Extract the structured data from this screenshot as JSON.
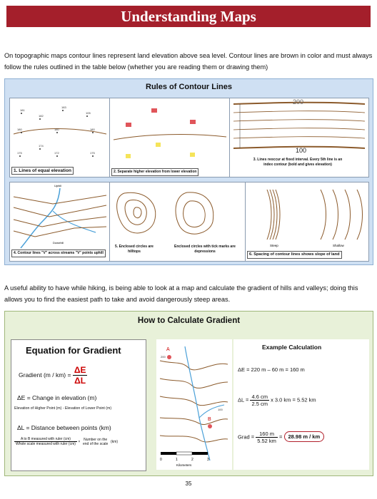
{
  "banner": {
    "title": "Understanding Maps"
  },
  "intro": {
    "text": "On topographic maps contour lines represent land elevation above sea level. Contour lines are brown in color and must always follow the rules outlined in the table below (whether you are reading them or drawing them)"
  },
  "rules": {
    "title": "Rules of Contour Lines",
    "panel1": {
      "caption": "1. Lines of equal elevation",
      "labels": [
        "181",
        "182",
        "183",
        "105",
        "180",
        "180",
        "180",
        "174",
        "175",
        "172",
        "175"
      ]
    },
    "panel2": {
      "caption": "2. Separate higher elevation from lower elevation"
    },
    "panel3": {
      "caption": "3. Lines reoccur at fixed interval. Every 5th line is an index contour (bold and gives elevation)",
      "top_label": "200",
      "bottom_label": "100"
    },
    "panel4": {
      "caption": "4. Contour lines \"V\" across streams \"V\" points uphill",
      "uphill": "Uphill",
      "downhill": "Downhill"
    },
    "panel5": {
      "caption1": "5. Enclosed circles are hilltops",
      "caption2": "Enclosed circles with tick marks are depressions"
    },
    "panel6": {
      "caption": "6. Spacing of contour lines shows slope of land",
      "steep": "Steep",
      "shallow": "Shallow"
    }
  },
  "hiking": {
    "text": "A useful ability to have while hiking, is being able to look at a map and calculate the gradient of hills and valleys; doing this allows you to find the easiest path to take and avoid dangerously steep areas."
  },
  "gradient": {
    "title": "How to Calculate Gradient",
    "equation_title": "Equation for Gradient",
    "gradient_label": "Gradient (m / km) =",
    "delta_e": "ΔE",
    "delta_l": "ΔL",
    "change_label": "ΔE = Change in elevation (m)",
    "change_sub": "Elevation of Higher Point (m) - Elevation of Lower Point (m)",
    "distance_label": "ΔL = Distance between points (km)",
    "a_to_b": "A to B measured with ruler (cm)",
    "whole_scale": "Whole scale measured with ruler (cm)",
    "times": "×",
    "number_on_end": "Number on the end of the scale",
    "km": "(km)",
    "map_labels": {
      "a": "A",
      "b": "B",
      "contour1": "200",
      "contour2": "100"
    },
    "scale": {
      "ticks": [
        "0",
        "1",
        "2",
        "3"
      ],
      "unit": "Kilometers"
    },
    "example": {
      "title": "Example Calculation",
      "de": "ΔE = 220 m – 60 m = 160 m",
      "dl_prefix": "ΔL =",
      "dl_num": "4.6 cm",
      "dl_den": "2.5 cm",
      "dl_rest": "x  3.0 km  =  5.52 km",
      "grad_prefix": "Grad =",
      "grad_num": "160 m",
      "grad_den": "5.52 km",
      "grad_eq": "=",
      "result": "28.98 m / km"
    }
  },
  "page_number": "35"
}
